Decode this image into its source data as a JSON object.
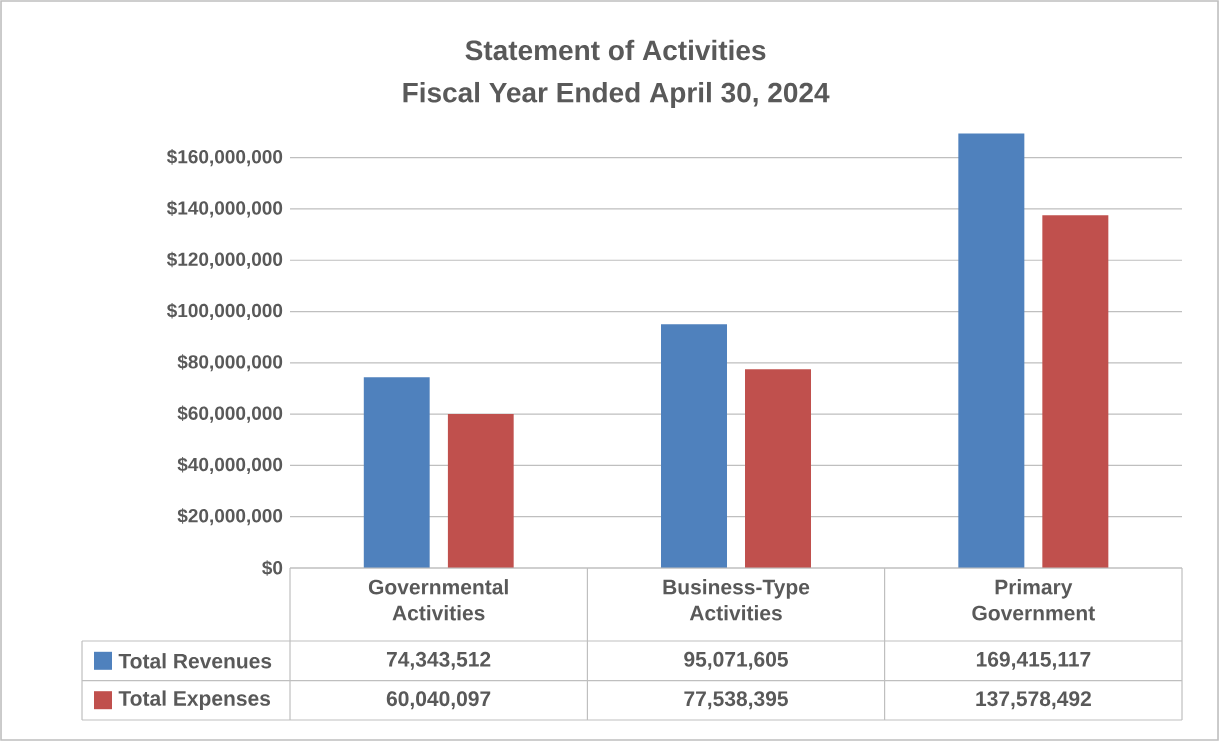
{
  "chart_data": {
    "type": "bar",
    "title": "Statement of Activities",
    "subtitle": "Fiscal Year Ended April 30, 2024",
    "categories": [
      "Governmental Activities",
      "Business-Type Activities",
      "Primary Government"
    ],
    "series": [
      {
        "name": "Total Revenues",
        "color": "#4f81bd",
        "values": [
          74343512,
          95071605,
          169415117
        ],
        "value_labels": [
          "74,343,512",
          "95,071,605",
          "169,415,117"
        ]
      },
      {
        "name": "Total Expenses",
        "color": "#c0504d",
        "values": [
          60040097,
          77538395,
          137578492
        ],
        "value_labels": [
          "60,040,097",
          "77,538,395",
          "137,578,492"
        ]
      }
    ],
    "ylim": [
      0,
      170000000
    ],
    "yticks": [
      {
        "value": 0,
        "label": "$0"
      },
      {
        "value": 20000000,
        "label": "$20,000,000"
      },
      {
        "value": 40000000,
        "label": "$40,000,000"
      },
      {
        "value": 60000000,
        "label": "$60,000,000"
      },
      {
        "value": 80000000,
        "label": "$80,000,000"
      },
      {
        "value": 100000000,
        "label": "$100,000,000"
      },
      {
        "value": 120000000,
        "label": "$120,000,000"
      },
      {
        "value": 140000000,
        "label": "$140,000,000"
      },
      {
        "value": 160000000,
        "label": "$160,000,000"
      }
    ],
    "grid": "y",
    "legend": "bottom left"
  }
}
